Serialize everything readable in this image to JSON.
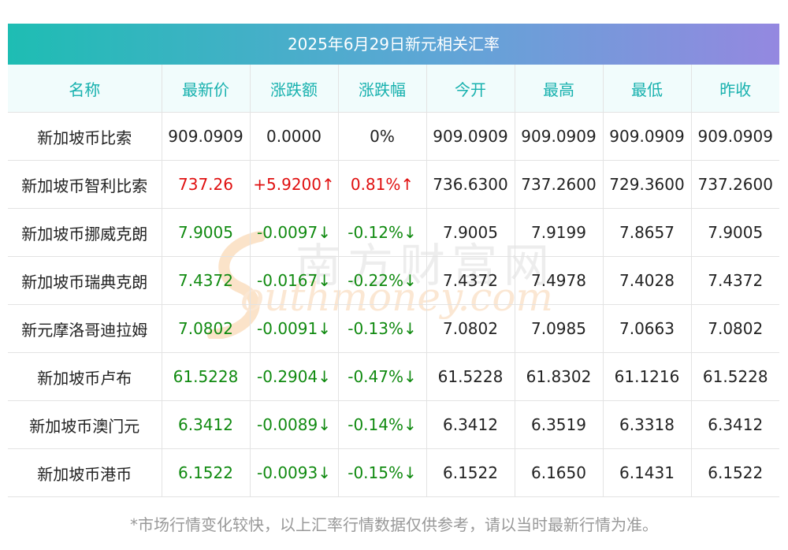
{
  "title": "2025年6月29日新元相关汇率",
  "headers": [
    "名称",
    "最新价",
    "涨跌额",
    "涨跌幅",
    "今开",
    "最高",
    "最低",
    "昨收"
  ],
  "rows": [
    {
      "name": "新加坡币比索",
      "price": "909.0909",
      "change": "0.0000",
      "pct": "0%",
      "open": "909.0909",
      "high": "909.0909",
      "low": "909.0909",
      "prev": "909.0909",
      "trend": "flat"
    },
    {
      "name": "新加坡币智利比索",
      "price": "737.26",
      "change": "+5.9200↑",
      "pct": "0.81%↑",
      "open": "736.6300",
      "high": "737.2600",
      "low": "729.3600",
      "prev": "737.2600",
      "trend": "up"
    },
    {
      "name": "新加坡币挪威克朗",
      "price": "7.9005",
      "change": "-0.0097↓",
      "pct": "-0.12%↓",
      "open": "7.9005",
      "high": "7.9199",
      "low": "7.8657",
      "prev": "7.9005",
      "trend": "down"
    },
    {
      "name": "新加坡币瑞典克朗",
      "price": "7.4372",
      "change": "-0.0167↓",
      "pct": "-0.22%↓",
      "open": "7.4372",
      "high": "7.4978",
      "low": "7.4028",
      "prev": "7.4372",
      "trend": "down"
    },
    {
      "name": "新元摩洛哥迪拉姆",
      "price": "7.0802",
      "change": "-0.0091↓",
      "pct": "-0.13%↓",
      "open": "7.0802",
      "high": "7.0985",
      "low": "7.0663",
      "prev": "7.0802",
      "trend": "down"
    },
    {
      "name": "新加坡币卢布",
      "price": "61.5228",
      "change": "-0.2904↓",
      "pct": "-0.47%↓",
      "open": "61.5228",
      "high": "61.8302",
      "low": "61.1216",
      "prev": "61.5228",
      "trend": "down"
    },
    {
      "name": "新加坡币澳门元",
      "price": "6.3412",
      "change": "-0.0089↓",
      "pct": "-0.14%↓",
      "open": "6.3412",
      "high": "6.3519",
      "low": "6.3318",
      "prev": "6.3412",
      "trend": "down"
    },
    {
      "name": "新加坡币港币",
      "price": "6.1522",
      "change": "-0.0093↓",
      "pct": "-0.15%↓",
      "open": "6.1522",
      "high": "6.1650",
      "low": "6.1431",
      "prev": "6.1522",
      "trend": "down"
    }
  ],
  "footnote": "*市场行情变化较快，以上汇率行情数据仅供参考，请以当时最新行情为准。",
  "watermark": {
    "cn": "南方财富网",
    "en": "outhmoney.com"
  },
  "colors": {
    "up": "#e01010",
    "down": "#108a10",
    "header_text": "#17b1ae",
    "title_start": "#1ebdb3",
    "title_end": "#9488e0"
  }
}
